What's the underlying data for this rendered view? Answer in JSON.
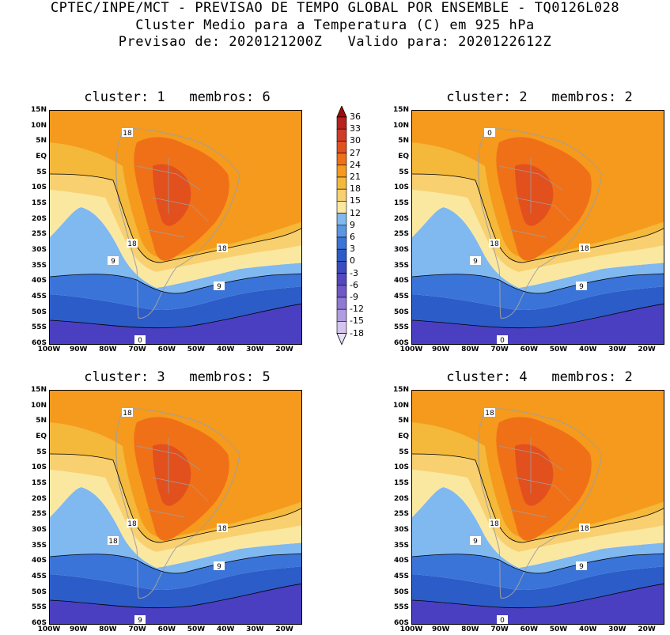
{
  "header": {
    "line1": "CPTEC/INPE/MCT - PREVISAO DE TEMPO GLOBAL POR ENSEMBLE - TQ0126L028",
    "line2": "Cluster Medio para a Temperatura (C) em 925 hPa",
    "line3": "Previsao de: 2020121200Z   Valido para: 2020122612Z"
  },
  "lat_labels": [
    "15N",
    "10N",
    "5N",
    "EQ",
    "5S",
    "10S",
    "15S",
    "20S",
    "25S",
    "30S",
    "35S",
    "40S",
    "45S",
    "50S",
    "55S",
    "60S"
  ],
  "lon_labels": [
    "100W",
    "90W",
    "80W",
    "70W",
    "60W",
    "50W",
    "40W",
    "30W",
    "20W"
  ],
  "colorbar": {
    "labels": [
      "36",
      "33",
      "30",
      "27",
      "24",
      "21",
      "18",
      "15",
      "12",
      "9",
      "6",
      "3",
      "0",
      "-3",
      "-6",
      "-9",
      "-12",
      "-15",
      "-18"
    ],
    "colors": [
      "#a00a0a",
      "#b8201e",
      "#d03a28",
      "#e2501e",
      "#f07018",
      "#f59a1c",
      "#f4b83a",
      "#f8d070",
      "#fbe8a0",
      "#80b8f0",
      "#5a96e4",
      "#3a74d8",
      "#2c5cc8",
      "#3c4cc0",
      "#5448c0",
      "#7058c8",
      "#9078d4",
      "#b09ce0",
      "#d4c4ee"
    ]
  },
  "panels": [
    {
      "title": "cluster: 1   membros: 6",
      "contour_labels": [
        "18",
        "18",
        "18",
        "9",
        "9",
        "0"
      ]
    },
    {
      "title": "cluster: 2   membros: 2",
      "contour_labels": [
        "18",
        "18",
        "18",
        "9",
        "9",
        "0",
        "0"
      ]
    },
    {
      "title": "cluster: 3   membros: 5",
      "contour_labels": [
        "18",
        "18",
        "18",
        "18",
        "9",
        "9"
      ]
    },
    {
      "title": "cluster: 4   membros: 2",
      "contour_labels": [
        "18",
        "18",
        "18",
        "9",
        "9",
        "0"
      ]
    }
  ]
}
